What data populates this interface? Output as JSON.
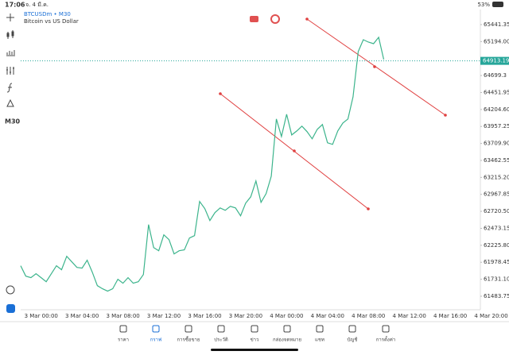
{
  "status_bar": {
    "time": "17:06",
    "date": "จ. 4 มี.ค.",
    "battery": "53%"
  },
  "symbol": {
    "name": "BTCUSDm • M30",
    "description": "Bitcoin vs US Dollar"
  },
  "timeframe": "M30",
  "chart_data": {
    "type": "line",
    "color": "#3cb48c",
    "categories": [
      null,
      null,
      null,
      null,
      "3 Mar 00:00",
      null,
      null,
      null,
      null,
      null,
      null,
      null,
      "3 Mar 04:00",
      null,
      null,
      null,
      null,
      null,
      null,
      null,
      "3 Mar 08:00",
      null,
      null,
      null,
      null,
      null,
      null,
      null,
      "3 Mar 12:00",
      null,
      null,
      null,
      null,
      null,
      null,
      null,
      "3 Mar 16:00",
      null,
      null,
      null,
      null,
      null,
      null,
      null,
      "3 Mar 20:00",
      null,
      null,
      null,
      null,
      null,
      null,
      null,
      "4 Mar 00:00",
      null,
      null,
      null,
      null,
      null,
      null,
      null,
      "4 Mar 04:00",
      null,
      null,
      null,
      null,
      null,
      null,
      null,
      "4 Mar 08:00",
      null,
      null,
      null,
      null,
      null,
      null,
      null,
      "4 Mar 12:00",
      null,
      null,
      null,
      null,
      null,
      null,
      null,
      "4 Mar 16:00",
      null,
      null,
      null,
      null,
      null,
      null,
      null,
      "4 Mar 20:00"
    ],
    "values": [
      61928,
      61777,
      61754,
      61812,
      61754,
      61696,
      61812,
      61928,
      61870,
      62066,
      61985,
      61904,
      61893,
      62008,
      61835,
      61638,
      61592,
      61558,
      61592,
      61731,
      61673,
      61754,
      61673,
      61696,
      61800,
      62528,
      62193,
      62147,
      62378,
      62309,
      62101,
      62147,
      62159,
      62332,
      62367,
      62864,
      62760,
      62586,
      62702,
      62771,
      62736,
      62794,
      62771,
      62656,
      62840,
      62933,
      63164,
      62852,
      62979,
      63233,
      64066,
      63811,
      64135,
      63834,
      63892,
      63962,
      63881,
      63777,
      63915,
      63985,
      63719,
      63696,
      63892,
      64008,
      64066,
      64389,
      65048,
      65221,
      65187,
      65164,
      65256,
      64933,
      null,
      null,
      null,
      null,
      null,
      null,
      null,
      null,
      null,
      null,
      null,
      null,
      null,
      null,
      null,
      null,
      null,
      null,
      null,
      null,
      null
    ],
    "ylim": [
      61287,
      65661
    ],
    "yticks": [
      65441.35,
      {
        "value": 65194,
        "label": "65194.00"
      },
      64699.3,
      64451.95,
      {
        "value": 64204.6,
        "label": "64204.60"
      },
      63957.25,
      {
        "value": 63709.9,
        "label": "63709.90"
      },
      63462.55,
      {
        "value": 63215.2,
        "label": "63215.20"
      },
      62967.85,
      {
        "value": 62720.5,
        "label": "62720.50"
      },
      62473.15,
      {
        "value": 62225.8,
        "label": "62225.80"
      },
      61978.45,
      {
        "value": 61731.1,
        "label": "61731.10"
      },
      61483.75
    ],
    "price_line": 64913.19,
    "price_line_color": "#26a69a"
  },
  "nav": [
    "ราคา",
    "กราฟ",
    "การซื้อขาย",
    "ประวัติ",
    "ข่าว",
    "กล่องจดหมาย",
    "แชท",
    "บัญชี",
    "การตั้งค่า"
  ]
}
